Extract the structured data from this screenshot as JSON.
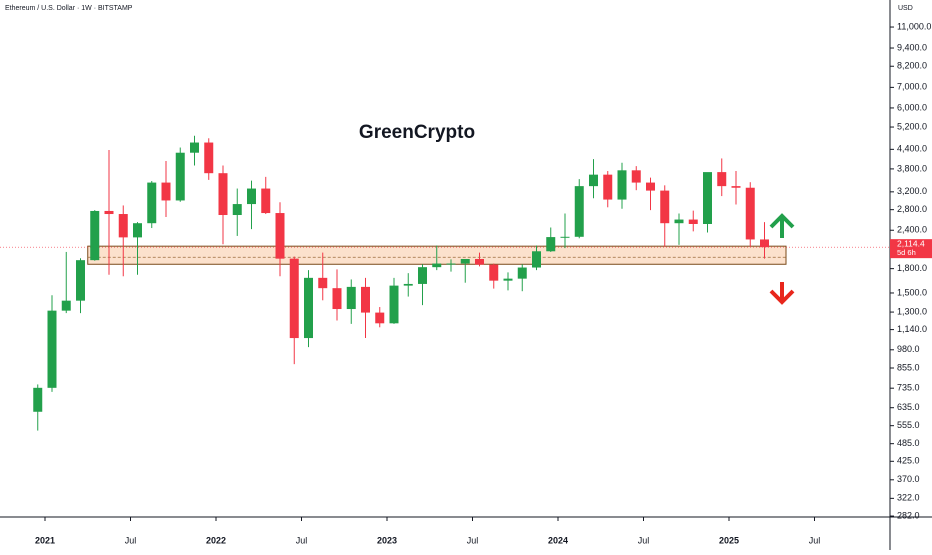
{
  "chart_data": {
    "type": "candlestick",
    "title": "Ethereum / U.S. Dollar · 1W · BITSTAMP",
    "currency": "USD",
    "annotation": "GreenCrypto",
    "annotation_color": "#1e8c2a",
    "log_scale": true,
    "up_color": "#22a04b",
    "down_color": "#f23645",
    "x": [
      "2020-12",
      "2021-01",
      "2021-02",
      "2021-03",
      "2021-04",
      "2021-05",
      "2021-06",
      "2021-07",
      "2021-08",
      "2021-09",
      "2021-10",
      "2021-11",
      "2021-12",
      "2022-01",
      "2022-02",
      "2022-03",
      "2022-04",
      "2022-05",
      "2022-06",
      "2022-07",
      "2022-08",
      "2022-09",
      "2022-10",
      "2022-11",
      "2022-12",
      "2023-01",
      "2023-02",
      "2023-03",
      "2023-04",
      "2023-05",
      "2023-06",
      "2023-07",
      "2023-08",
      "2023-09",
      "2023-10",
      "2023-11",
      "2023-12",
      "2024-01",
      "2024-02",
      "2024-03",
      "2024-04",
      "2024-05",
      "2024-06",
      "2024-07",
      "2024-08",
      "2024-09",
      "2024-10",
      "2024-11",
      "2024-12",
      "2025-01",
      "2025-02",
      "2025-03"
    ],
    "open": [
      616,
      737,
      1314,
      1416,
      1918,
      2773,
      2710,
      2275,
      2530,
      3430,
      3000,
      4290,
      4630,
      3680,
      2690,
      2920,
      3280,
      2730,
      1940,
      1070,
      1680,
      1555,
      1330,
      1570,
      1295,
      1195,
      1585,
      1605,
      1820,
      1870,
      1870,
      1935,
      1855,
      1645,
      1670,
      1815,
      2050,
      2280,
      2285,
      3340,
      3640,
      3020,
      3760,
      3430,
      3230,
      2530,
      2600,
      2515,
      3710,
      3340,
      3300,
      2240
    ],
    "high": [
      756,
      1475,
      2040,
      1945,
      2790,
      4380,
      2890,
      2550,
      3470,
      4030,
      4460,
      4870,
      4780,
      3900,
      3280,
      3480,
      3580,
      2960,
      1970,
      1780,
      2030,
      1790,
      1660,
      1680,
      1350,
      1680,
      1740,
      1860,
      2140,
      1930,
      1930,
      2030,
      1870,
      1750,
      1860,
      2140,
      2450,
      2720,
      3520,
      4090,
      3740,
      3980,
      3880,
      3560,
      3360,
      2720,
      2780,
      3580,
      4110,
      3740,
      3440,
      2550
    ],
    "low": [
      535,
      715,
      1290,
      1290,
      1910,
      1720,
      1700,
      1720,
      2440,
      2650,
      2970,
      3900,
      3500,
      2160,
      2300,
      2420,
      2710,
      1700,
      880,
      1000,
      1420,
      1220,
      1190,
      1070,
      1160,
      1190,
      1460,
      1370,
      1780,
      1760,
      1620,
      1830,
      1550,
      1530,
      1520,
      1780,
      2040,
      2100,
      2260,
      3050,
      2850,
      2820,
      3240,
      2790,
      2120,
      2150,
      2380,
      2360,
      3100,
      2910,
      2120,
      1940
    ],
    "close": [
      737,
      1314,
      1416,
      1918,
      2773,
      2710,
      2275,
      2530,
      3430,
      3000,
      4290,
      4630,
      3680,
      2690,
      2920,
      3280,
      2730,
      1940,
      1070,
      1680,
      1555,
      1330,
      1570,
      1295,
      1195,
      1585,
      1605,
      1820,
      1870,
      1870,
      1935,
      1855,
      1645,
      1670,
      1815,
      2050,
      2280,
      2285,
      3340,
      3640,
      3020,
      3760,
      3430,
      3230,
      2530,
      2600,
      2515,
      3710,
      3340,
      3300,
      2240,
      2114.4
    ],
    "ylim": [
      280,
      13470
    ],
    "yticks": [
      {
        "value": 282,
        "label": "282.0"
      },
      {
        "value": 322,
        "label": "322.0"
      },
      {
        "value": 370,
        "label": "370.0"
      },
      {
        "value": 425,
        "label": "425.0"
      },
      {
        "value": 485,
        "label": "485.0"
      },
      {
        "value": 555,
        "label": "555.0"
      },
      {
        "value": 635,
        "label": "635.0"
      },
      {
        "value": 735,
        "label": "735.0"
      },
      {
        "value": 855,
        "label": "855.0"
      },
      {
        "value": 980,
        "label": "980.0"
      },
      {
        "value": 1140,
        "label": "1,140.0"
      },
      {
        "value": 1300,
        "label": "1,300.0"
      },
      {
        "value": 1500,
        "label": "1,500.0"
      },
      {
        "value": 1800,
        "label": "1,800.0"
      },
      {
        "value": 2400,
        "label": "2,400.0"
      },
      {
        "value": 2800,
        "label": "2,800.0"
      },
      {
        "value": 3200,
        "label": "3,200.0"
      },
      {
        "value": 3800,
        "label": "3,800.0"
      },
      {
        "value": 4400,
        "label": "4,400.0"
      },
      {
        "value": 5200,
        "label": "5,200.0"
      },
      {
        "value": 6000,
        "label": "6,000.0"
      },
      {
        "value": 7000,
        "label": "7,000.0"
      },
      {
        "value": 8200,
        "label": "8,200.0"
      },
      {
        "value": 9400,
        "label": "9,400.0"
      },
      {
        "value": 11000,
        "label": "11,000.0"
      }
    ],
    "xticks": [
      {
        "value": "2021-01",
        "label": "2021"
      },
      {
        "value": "2021-07",
        "label": "Jul"
      },
      {
        "value": "2022-01",
        "label": "2022"
      },
      {
        "value": "2022-07",
        "label": "Jul"
      },
      {
        "value": "2023-01",
        "label": "2023"
      },
      {
        "value": "2023-07",
        "label": "Jul"
      },
      {
        "value": "2024-01",
        "label": "2024"
      },
      {
        "value": "2024-07",
        "label": "Jul"
      },
      {
        "value": "2025-01",
        "label": "2025"
      },
      {
        "value": "2025-07",
        "label": "Jul"
      }
    ],
    "last_price": 2114.4,
    "last_price_label": "2,114.4",
    "countdown": "5d 6h",
    "zone": {
      "start": "2021-04",
      "end": "2025-05",
      "from": 1860,
      "to": 2130,
      "mid": 1960
    }
  }
}
